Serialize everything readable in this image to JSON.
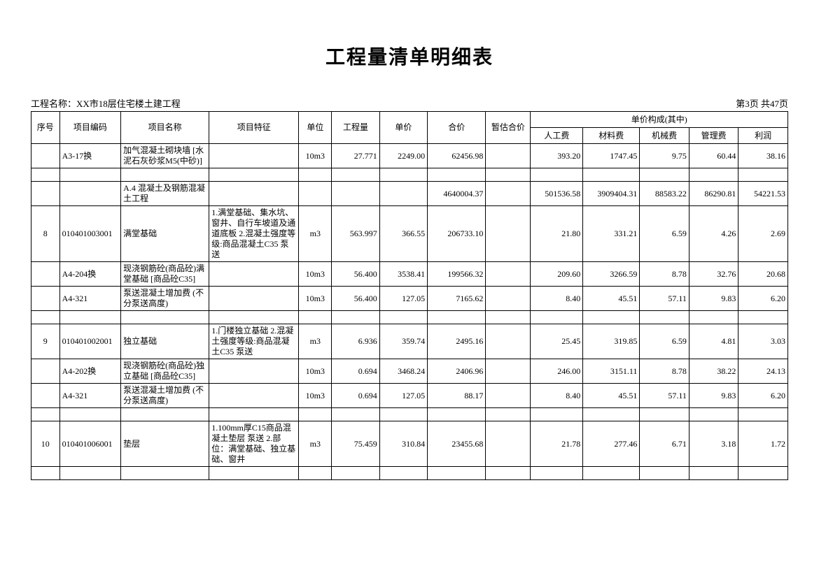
{
  "title": "工程量清单明细表",
  "project_label": "工程名称：",
  "project_name": "XX市18层住宅楼土建工程",
  "page_info": "第3页 共47页",
  "columns": {
    "seq": "序号",
    "code": "项目编码",
    "name": "项目名称",
    "feature": "项目特征",
    "unit": "单位",
    "qty": "工程量",
    "price": "单价",
    "total": "合价",
    "provisional": "暂估合价",
    "breakdown": "单价构成(其中)",
    "labor": "人工费",
    "material": "材料费",
    "machine": "机械费",
    "mgmt": "管理费",
    "profit": "利润"
  },
  "rows": [
    {
      "seq": "",
      "code": "A3-17换",
      "name": "加气混凝土砌块墙 [水泥石灰砂浆M5(中砂)]",
      "feature": "",
      "unit": "10m3",
      "qty": "27.771",
      "price": "2249.00",
      "total": "62456.98",
      "prov": "",
      "lab": "393.20",
      "mat": "1747.45",
      "mach": "9.75",
      "mgmt": "60.44",
      "prof": "38.16"
    },
    {
      "spacer": true
    },
    {
      "seq": "",
      "code": "",
      "name": "A.4 混凝土及钢筋混凝土工程",
      "feature": "",
      "unit": "",
      "qty": "",
      "price": "",
      "total": "4640004.37",
      "prov": "",
      "lab": "501536.58",
      "mat": "3909404.31",
      "mach": "88583.22",
      "mgmt": "86290.81",
      "prof": "54221.53"
    },
    {
      "seq": "8",
      "code": "010401003001",
      "name": "满堂基础",
      "feature": "1.满堂基础、集水坑、窗井、自行车坡道及通道底板 2.混凝土强度等级:商品混凝土C35 泵送",
      "unit": "m3",
      "qty": "563.997",
      "price": "366.55",
      "total": "206733.10",
      "prov": "",
      "lab": "21.80",
      "mat": "331.21",
      "mach": "6.59",
      "mgmt": "4.26",
      "prof": "2.69"
    },
    {
      "seq": "",
      "code": "A4-204换",
      "name": "现浇钢筋砼(商品砼)满堂基础 [商品砼C35]",
      "feature": "",
      "unit": "10m3",
      "qty": "56.400",
      "price": "3538.41",
      "total": "199566.32",
      "prov": "",
      "lab": "209.60",
      "mat": "3266.59",
      "mach": "8.78",
      "mgmt": "32.76",
      "prof": "20.68"
    },
    {
      "seq": "",
      "code": "A4-321",
      "name": "泵送混凝土增加费 (不分泵送高度)",
      "feature": "",
      "unit": "10m3",
      "qty": "56.400",
      "price": "127.05",
      "total": "7165.62",
      "prov": "",
      "lab": "8.40",
      "mat": "45.51",
      "mach": "57.11",
      "mgmt": "9.83",
      "prof": "6.20"
    },
    {
      "spacer": true
    },
    {
      "seq": "9",
      "code": "010401002001",
      "name": "独立基础",
      "feature": "1.门楼独立基础 2.混凝土强度等级:商品混凝土C35 泵送",
      "unit": "m3",
      "qty": "6.936",
      "price": "359.74",
      "total": "2495.16",
      "prov": "",
      "lab": "25.45",
      "mat": "319.85",
      "mach": "6.59",
      "mgmt": "4.81",
      "prof": "3.03"
    },
    {
      "seq": "",
      "code": "A4-202换",
      "name": "现浇钢筋砼(商品砼)独立基础 [商品砼C35]",
      "feature": "",
      "unit": "10m3",
      "qty": "0.694",
      "price": "3468.24",
      "total": "2406.96",
      "prov": "",
      "lab": "246.00",
      "mat": "3151.11",
      "mach": "8.78",
      "mgmt": "38.22",
      "prof": "24.13"
    },
    {
      "seq": "",
      "code": "A4-321",
      "name": "泵送混凝土增加费 (不分泵送高度)",
      "feature": "",
      "unit": "10m3",
      "qty": "0.694",
      "price": "127.05",
      "total": "88.17",
      "prov": "",
      "lab": "8.40",
      "mat": "45.51",
      "mach": "57.11",
      "mgmt": "9.83",
      "prof": "6.20"
    },
    {
      "spacer": true
    },
    {
      "seq": "10",
      "code": "010401006001",
      "name": "垫层",
      "feature": "1.100mm厚C15商品混凝土垫层 泵送 2.部位：满堂基础、独立基础、窗井",
      "unit": "m3",
      "qty": "75.459",
      "price": "310.84",
      "total": "23455.68",
      "prov": "",
      "lab": "21.78",
      "mat": "277.46",
      "mach": "6.71",
      "mgmt": "3.18",
      "prof": "1.72"
    },
    {
      "spacer": true
    }
  ]
}
